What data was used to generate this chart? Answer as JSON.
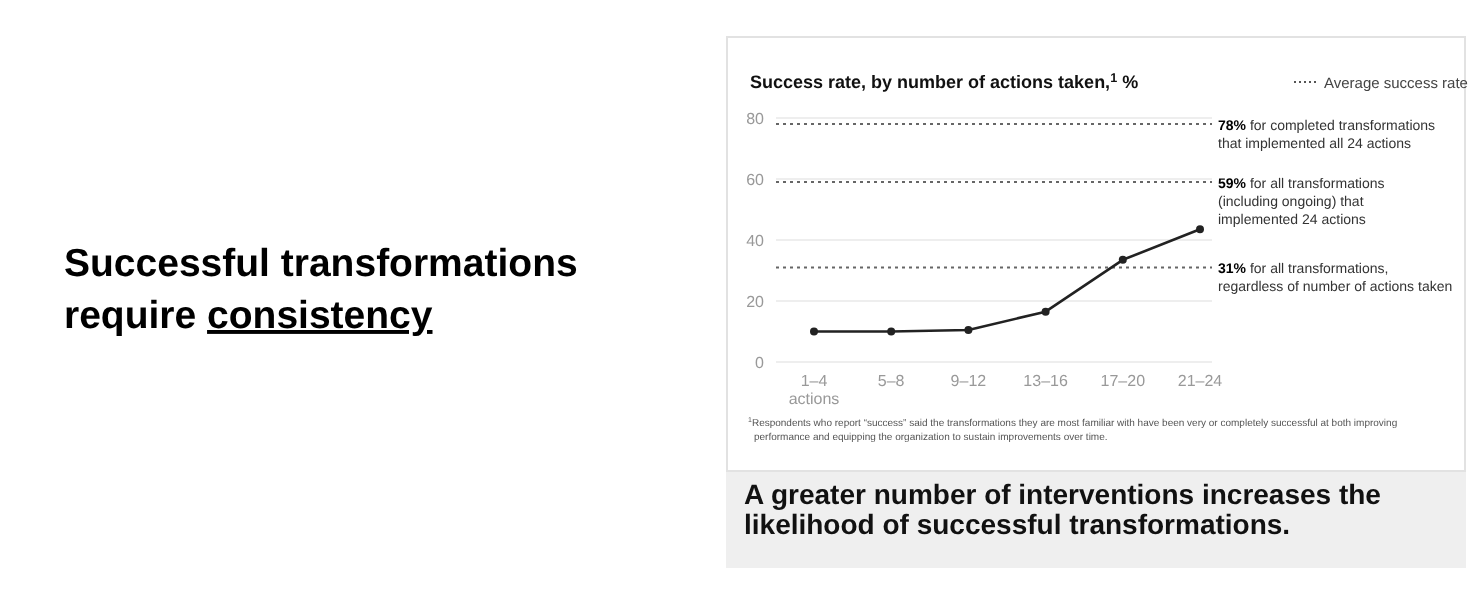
{
  "chart_data": {
    "type": "line",
    "title": "Success rate, by number of actions taken,$^{1}$ %",
    "categories": [
      "1–4\nactions",
      "5–8",
      "9–12",
      "13–16",
      "17–20",
      "21–24"
    ],
    "series": [
      {
        "color": "#222222",
        "values": [
          10,
          10,
          10.5,
          16.5,
          33.5,
          43.5
        ]
      }
    ],
    "ylim": [
      0,
      80
    ],
    "yticks": [
      0,
      20,
      40,
      60,
      80
    ],
    "grid": "y",
    "marker": "circle",
    "line_style": "solid",
    "legend": "top right",
    "legend_title": "Average success rate",
    "ref_lines": [
      {
        "axis": "y",
        "value": 78,
        "label": "78% for completed transformations\nthat implemented all 24 actions",
        "line_style": "dotted"
      },
      {
        "axis": "y",
        "value": 59,
        "label": "59% for all transformations\n(including ongoing) that\nimplemented 24 actions",
        "line_style": "dotted"
      },
      {
        "axis": "y",
        "value": 31,
        "label": "31% for all transformations,\nregardless of number of actions taken",
        "line_style": "dotted"
      }
    ],
    "annotations": [
      "$^{1}$Respondents who report “success” said the transformations they are most familiar with have been very or completely successful at both improving\nperformance and equipping the organization to sustain improvements over time.",
      "Successful transformations\nrequire consistency",
      "A greater number of interventions increases the\nlikelihood of successful transformations."
    ]
  }
}
